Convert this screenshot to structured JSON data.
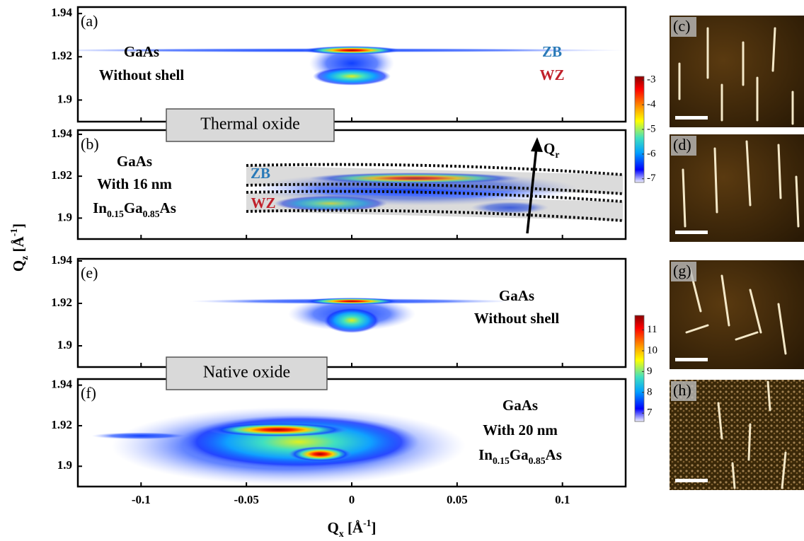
{
  "chart_data": [
    {
      "type": "heatmap",
      "panel": "(a)",
      "xlim": [
        -0.13,
        0.13
      ],
      "ylim": [
        1.89,
        1.943
      ],
      "xticks": [
        -0.1,
        -0.05,
        0,
        0.05,
        0.1
      ],
      "yticks": [
        1.9,
        1.92,
        1.94
      ],
      "labels": [
        {
          "text": "GaAs"
        },
        {
          "text": "Without shell"
        },
        {
          "text": "ZB",
          "color": "#2a7ab8"
        },
        {
          "text": "WZ",
          "color": "#c0202a"
        }
      ]
    },
    {
      "type": "heatmap",
      "panel": "(b)",
      "xlim": [
        -0.13,
        0.13
      ],
      "ylim": [
        1.89,
        1.942
      ],
      "xticks": [
        -0.1,
        -0.05,
        0,
        0.05,
        0.1
      ],
      "yticks": [
        1.9,
        1.92,
        1.94
      ],
      "labels": [
        {
          "text": "GaAs"
        },
        {
          "text": "With 16 nm"
        },
        {
          "parts": [
            "In",
            "0.15",
            "Ga",
            "0.85",
            "As"
          ]
        },
        {
          "text": "ZB",
          "color": "#2a7ab8"
        },
        {
          "text": "WZ",
          "color": "#c0202a"
        },
        {
          "parts": [
            "Q",
            "r"
          ]
        }
      ]
    },
    {
      "type": "heatmap",
      "panel": "(e)",
      "xlim": [
        -0.13,
        0.13
      ],
      "ylim": [
        1.89,
        1.941
      ],
      "xticks": [
        -0.1,
        -0.05,
        0,
        0.05,
        0.1
      ],
      "yticks": [
        1.9,
        1.92,
        1.94
      ],
      "labels": [
        {
          "text": "GaAs"
        },
        {
          "text": "Without shell"
        }
      ]
    },
    {
      "type": "heatmap",
      "panel": "(f)",
      "xlim": [
        -0.13,
        0.13
      ],
      "ylim": [
        1.89,
        1.943
      ],
      "xticks": [
        -0.1,
        -0.05,
        0,
        0.05,
        0.1
      ],
      "yticks": [
        1.9,
        1.92,
        1.94
      ],
      "labels": [
        {
          "text": "GaAs"
        },
        {
          "text": "With 20 nm"
        },
        {
          "parts": [
            "In",
            "0.15",
            "Ga",
            "0.85",
            "As"
          ]
        }
      ]
    }
  ],
  "x_label": {
    "parts": [
      "Q",
      "x",
      " [Å",
      "-1",
      "]"
    ]
  },
  "y_label": {
    "parts": [
      "Q",
      "z",
      " [Å",
      "-1",
      "]"
    ]
  },
  "banners": [
    "Thermal oxide",
    "Native oxide"
  ],
  "colorbars": [
    {
      "lim": [
        -7.15,
        -2.85
      ],
      "ticks": [
        -3,
        -4,
        -5,
        -6,
        -7
      ]
    },
    {
      "lim": [
        6.6,
        11.7
      ],
      "ticks": [
        11,
        10,
        9,
        8,
        7
      ]
    }
  ],
  "images": [
    {
      "label": "(c)"
    },
    {
      "label": "(d)"
    },
    {
      "label": "(g)"
    },
    {
      "label": "(h)"
    }
  ]
}
